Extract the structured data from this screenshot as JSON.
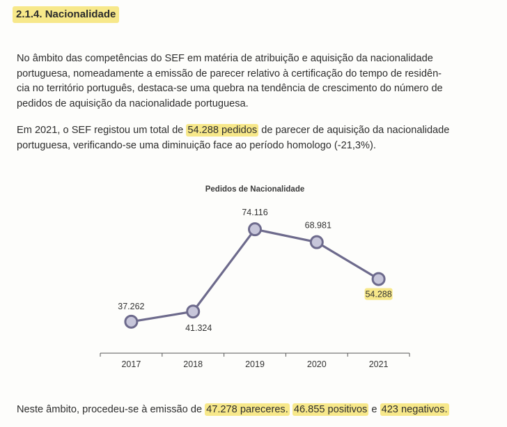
{
  "section": {
    "heading": "2.1.4. Nacionalidade"
  },
  "paragraph1": {
    "lines": [
      "No âmbito das competências do SEF em matéria de atribuição e aquisição da nacionalidade",
      "portuguesa, nomeadamente a emissão de parecer relativo à certificação do tempo de residên-",
      "cia no território português, destaca-se uma quebra na tendência de crescimento do número de",
      "pedidos de aquisição da nacionalidade portuguesa."
    ]
  },
  "paragraph2": {
    "line1_before": "Em 2021, o SEF registou um total de ",
    "line1_highlight": "54.288 pedidos",
    "line1_after": " de parecer de aquisição da nacionalidade",
    "line2": "portuguesa, verificando-se uma diminuição face ao período homologo (-21,3%)."
  },
  "paragraph3": {
    "before": "Neste âmbito, procedeu-se à emissão de ",
    "hl1": "47.278 pareceres.",
    "between1": " ",
    "hl2": "46.855 positivos",
    "between2": " e ",
    "hl3": "423 negativos."
  },
  "chart_data": {
    "type": "line",
    "title": "Pedidos de Nacionalidade",
    "categories": [
      "2017",
      "2018",
      "2019",
      "2020",
      "2021"
    ],
    "values": [
      37262,
      41324,
      74116,
      68981,
      54288
    ],
    "data_labels": [
      "37.262",
      "41.324",
      "74.116",
      "68.981",
      "54.288"
    ],
    "highlighted_label_index": 4,
    "ylim": [
      30000,
      80000
    ],
    "grid": false,
    "legend": "none",
    "colors": {
      "line": "#6d6a8c",
      "marker_fill": "#c7c6da",
      "highlight": "#f7e88a"
    }
  }
}
